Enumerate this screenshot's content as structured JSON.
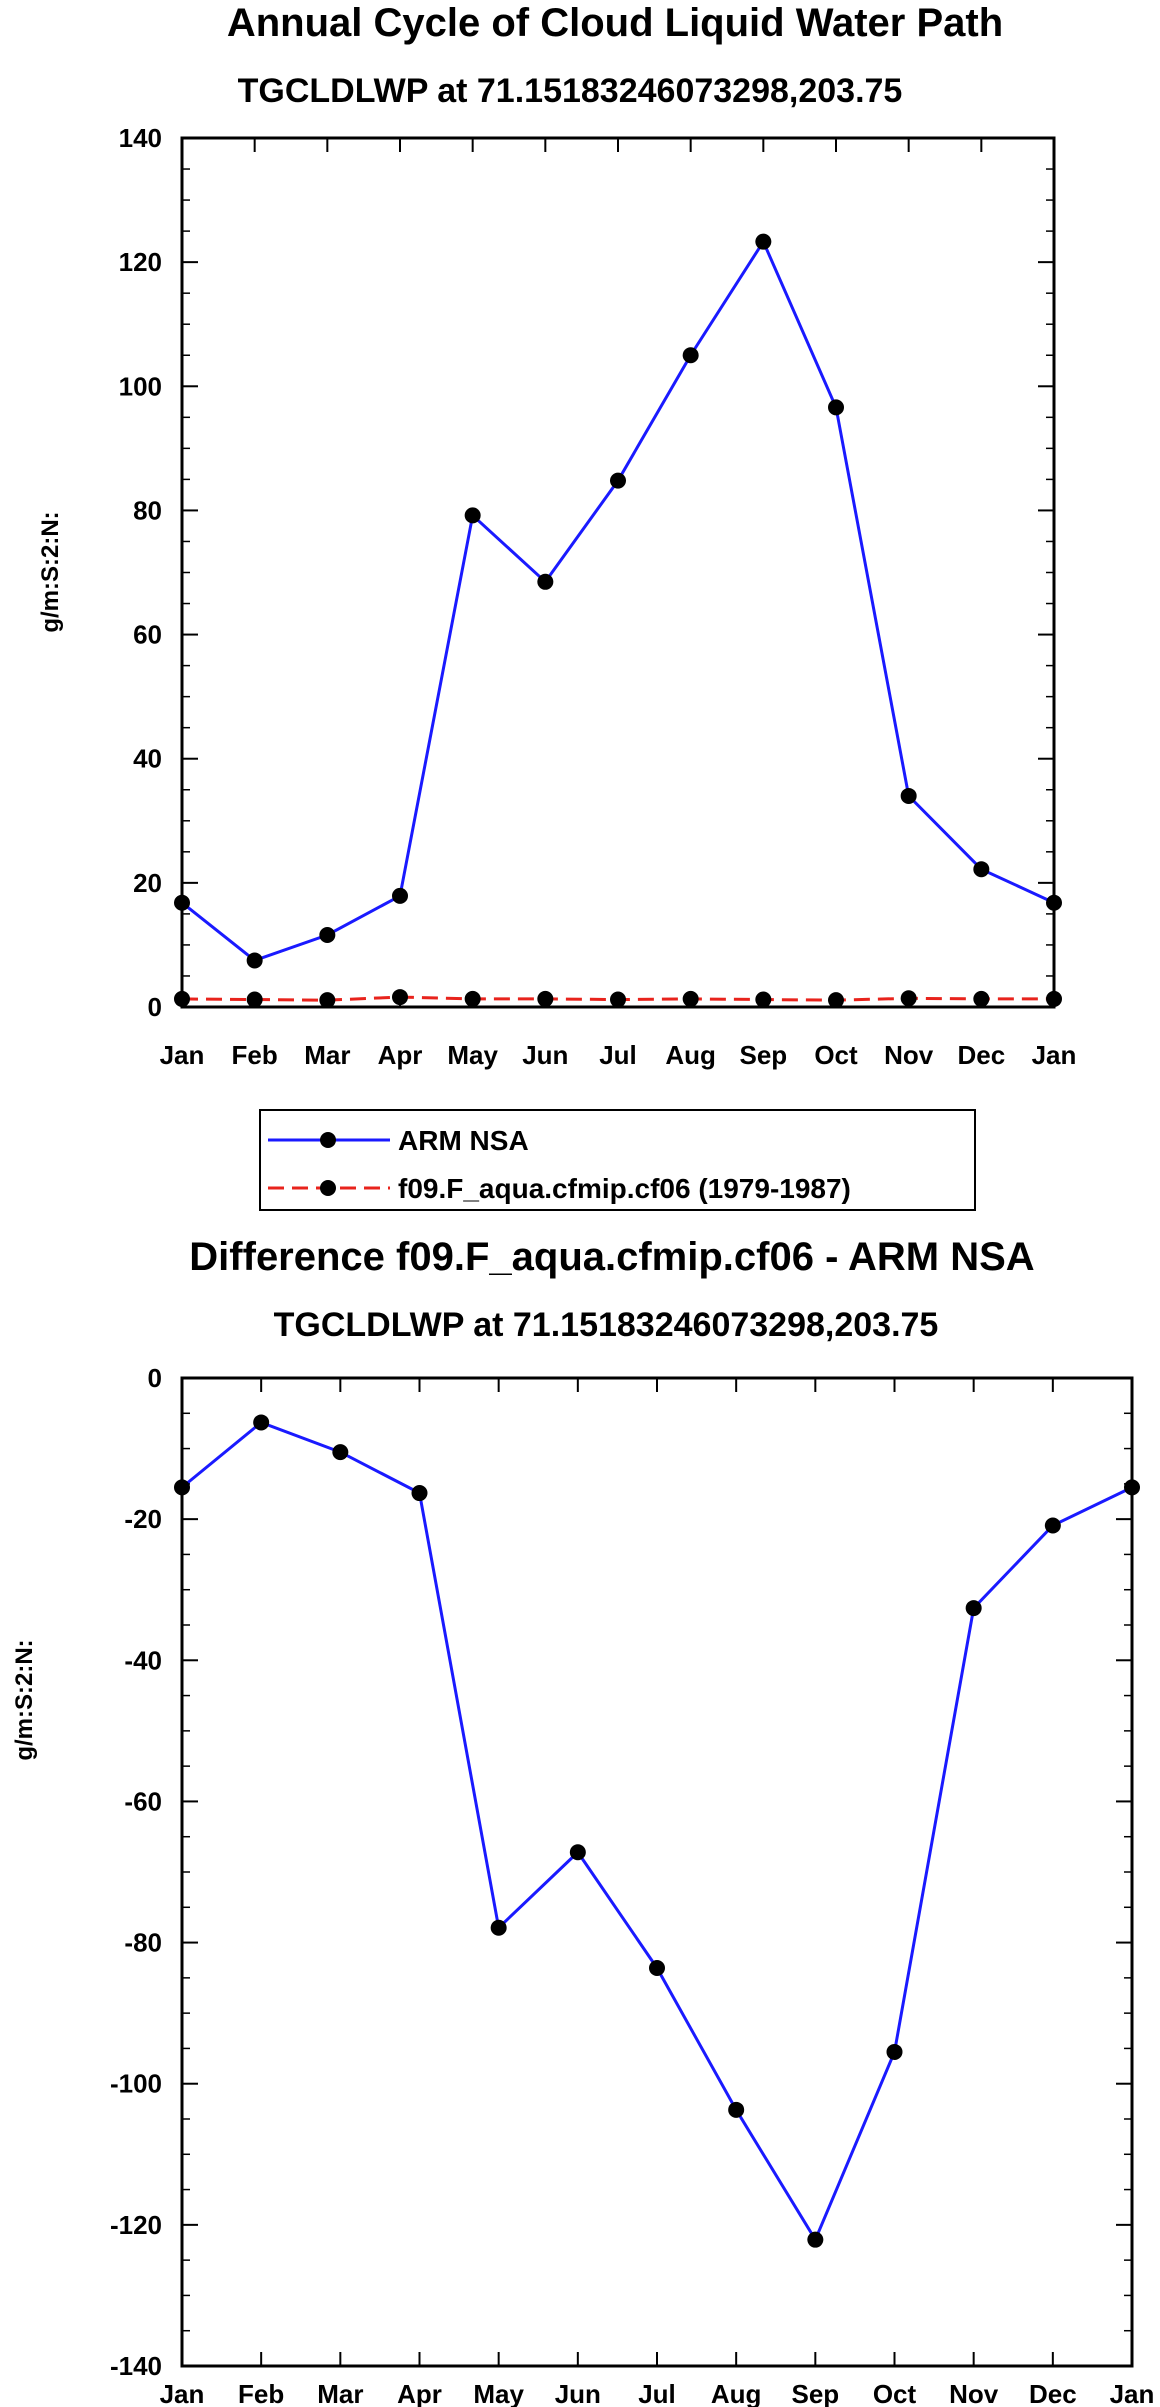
{
  "chart_data": [
    {
      "type": "line",
      "title": "Annual Cycle of Cloud Liquid Water Path",
      "subtitle": "TGCLDLWP at 71.15183246073298,203.75",
      "xlabel": "",
      "ylabel": "g/m:S:2:N:",
      "categories": [
        "Jan",
        "Feb",
        "Mar",
        "Apr",
        "May",
        "Jun",
        "Jul",
        "Aug",
        "Sep",
        "Oct",
        "Nov",
        "Dec",
        "Jan"
      ],
      "ylim": [
        0,
        140
      ],
      "yticks": [
        0,
        20,
        40,
        60,
        80,
        100,
        120,
        140
      ],
      "series": [
        {
          "name": "ARM NSA",
          "color": "#1a1aff",
          "style": "solid",
          "values": [
            16.8,
            7.5,
            11.6,
            17.9,
            79.2,
            68.5,
            84.8,
            105.0,
            123.3,
            96.6,
            34.0,
            22.2,
            16.8
          ]
        },
        {
          "name": "f09.F_aqua.cfmip.cf06 (1979-1987)",
          "color": "#e8231c",
          "style": "dashed",
          "values": [
            1.3,
            1.2,
            1.1,
            1.6,
            1.3,
            1.3,
            1.2,
            1.3,
            1.2,
            1.1,
            1.4,
            1.3,
            1.3
          ]
        }
      ],
      "legend": "below"
    },
    {
      "type": "line",
      "title": "Difference f09.F_aqua.cfmip.cf06 - ARM NSA",
      "subtitle": "TGCLDLWP at 71.15183246073298,203.75",
      "xlabel": "",
      "ylabel": "g/m:S:2:N:",
      "categories": [
        "Jan",
        "Feb",
        "Mar",
        "Apr",
        "May",
        "Jun",
        "Jul",
        "Aug",
        "Sep",
        "Oct",
        "Nov",
        "Dec",
        "Jan"
      ],
      "ylim": [
        -140,
        0
      ],
      "yticks": [
        0,
        -20,
        -40,
        -60,
        -80,
        -100,
        -120,
        -140
      ],
      "series": [
        {
          "name": "Difference",
          "color": "#1a1aff",
          "style": "solid",
          "values": [
            -15.5,
            -6.3,
            -10.5,
            -16.3,
            -77.9,
            -67.2,
            -83.6,
            -103.7,
            -122.1,
            -95.5,
            -32.6,
            -20.9,
            -15.5
          ]
        }
      ]
    }
  ]
}
